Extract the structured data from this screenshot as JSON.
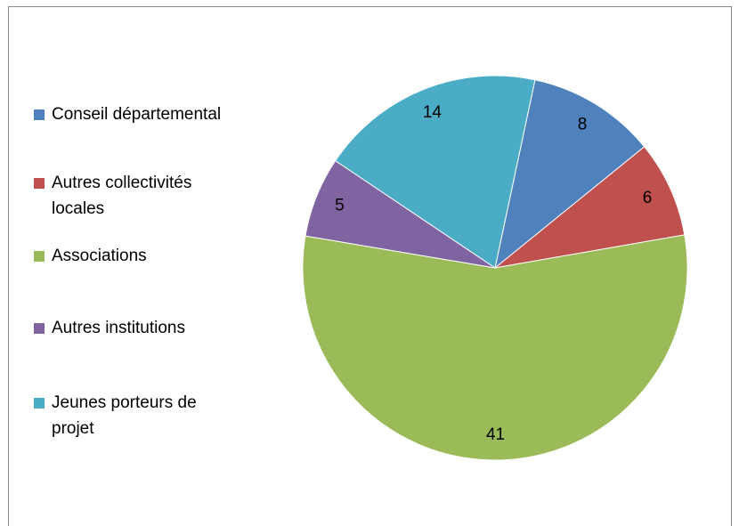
{
  "chart_data": {
    "type": "pie",
    "categories": [
      "Conseil départemental",
      "Autres collectivités locales",
      "Associations",
      "Autres institutions",
      "Jeunes porteurs de projet"
    ],
    "values": [
      8,
      6,
      41,
      5,
      14
    ],
    "colors": [
      "#4f81bd",
      "#c0504d",
      "#9bbb59",
      "#8064a2",
      "#4bacc6"
    ],
    "legend": "left"
  }
}
